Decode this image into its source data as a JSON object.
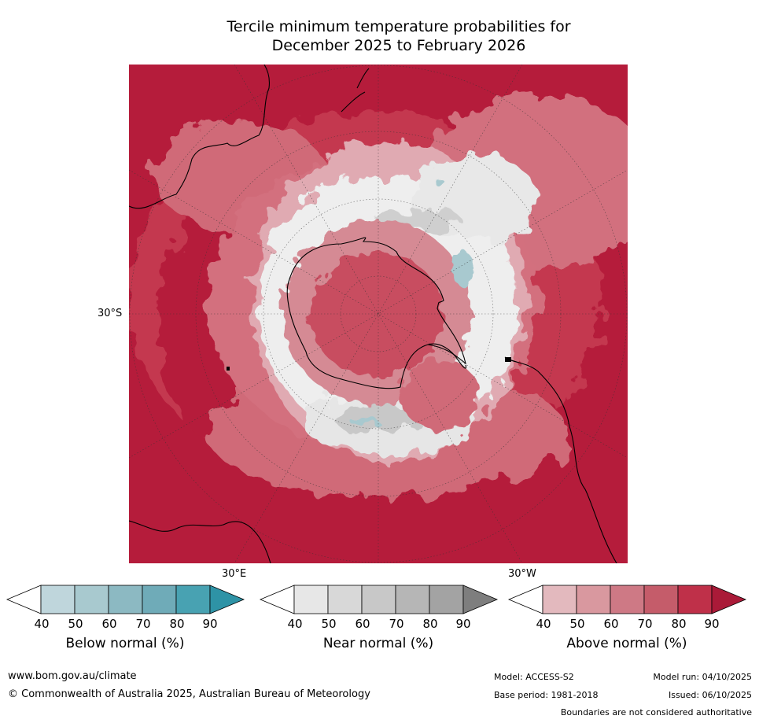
{
  "title": {
    "line1": "Tercile minimum temperature probabilities for",
    "line2": "December 2025 to February 2026"
  },
  "map_labels": {
    "lat_30s": "30°S",
    "lon_30e": "30°E",
    "lon_30w": "30°W"
  },
  "colorbars": [
    {
      "title": "Below normal (%)",
      "ticks": [
        "40",
        "50",
        "60",
        "70",
        "80",
        "90"
      ],
      "colors": [
        "#ffffff",
        "#bfd6dc",
        "#a8c9cf",
        "#8cb9c2",
        "#6fabb8",
        "#48a2b2",
        "#2e93a6"
      ]
    },
    {
      "title": "Near normal (%)",
      "ticks": [
        "40",
        "50",
        "60",
        "70",
        "80",
        "90"
      ],
      "colors": [
        "#ffffff",
        "#e7e7e7",
        "#d8d8d8",
        "#c8c8c8",
        "#b6b6b6",
        "#a3a3a3",
        "#7e7e7e"
      ]
    },
    {
      "title": "Above normal (%)",
      "ticks": [
        "40",
        "50",
        "60",
        "70",
        "80",
        "90"
      ],
      "colors": [
        "#ffffff",
        "#e3b9be",
        "#d9989f",
        "#ce7985",
        "#c55c6a",
        "#bf3049",
        "#aa1a38"
      ]
    }
  ],
  "footer": {
    "website": "www.bom.gov.au/climate",
    "copyright": "© Commonwealth of Australia 2025, Australian Bureau of Meteorology",
    "model": "Model: ACCESS-S2",
    "model_run": "Model run: 04/10/2025",
    "base_period": "Base period: 1981-2018",
    "issued": "Issued: 06/10/2025",
    "disclaimer": "Boundaries are not considered authoritative"
  }
}
